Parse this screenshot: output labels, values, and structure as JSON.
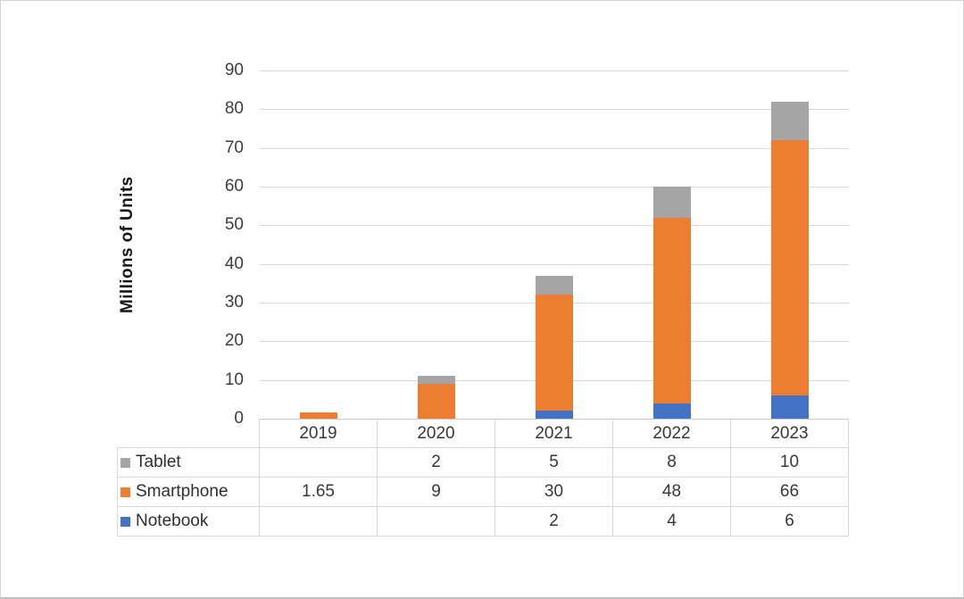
{
  "window": {
    "background": "#ffffff",
    "frame_border": "#d5d5d5"
  },
  "chart_data": {
    "type": "bar",
    "stacked": true,
    "title": "",
    "xlabel": "",
    "ylabel": "Millions of Units",
    "categories": [
      "2019",
      "2020",
      "2021",
      "2022",
      "2023"
    ],
    "series": [
      {
        "name": "Tablet",
        "color": "#A5A5A5",
        "values": [
          null,
          2,
          5,
          8,
          10
        ]
      },
      {
        "name": "Smartphone",
        "color": "#ED7D31",
        "values": [
          1.65,
          9,
          30,
          48,
          66
        ]
      },
      {
        "name": "Notebook",
        "color": "#4472C4",
        "values": [
          null,
          null,
          2,
          4,
          6
        ]
      }
    ],
    "stack_order_bottom_to_top": [
      "Notebook",
      "Smartphone",
      "Tablet"
    ],
    "ylim": [
      0,
      90
    ],
    "yticks": [
      0,
      10,
      20,
      30,
      40,
      50,
      60,
      70,
      80,
      90
    ],
    "grid": "horizontal-only",
    "gridline_color": "#d9d9d9",
    "axis_line_color": "#c9c9c9",
    "tick_label_color": "#3d3d3d",
    "legend_position": "table-left",
    "table_border_color": "#d9d9d9"
  }
}
